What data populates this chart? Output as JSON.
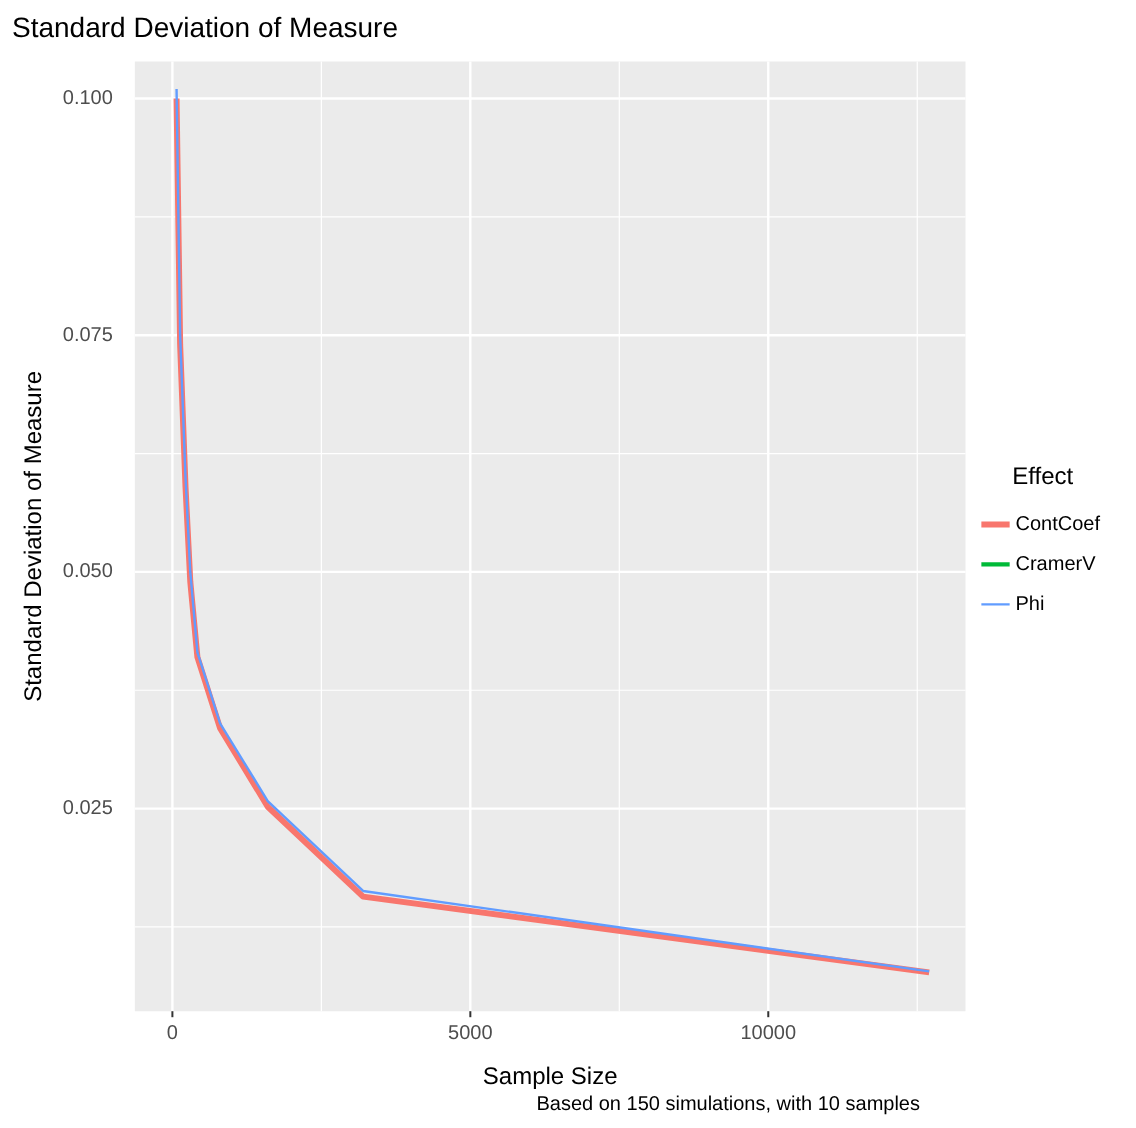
{
  "chart_data": {
    "type": "line",
    "title": "Standard Deviation of Measure",
    "xlabel": "Sample Size",
    "ylabel": "Standard Deviation of Measure",
    "legend_title": "Effect",
    "annotations": [
      "Based on 150 simulations, with 10 samples"
    ],
    "x": [
      70,
      130,
      220,
      300,
      420,
      800,
      1600,
      3200,
      12700
    ],
    "series": [
      {
        "name": "ContCoef",
        "color": "#f8766d",
        "values": [
          0.1,
          0.074,
          0.059,
          0.049,
          0.041,
          0.0335,
          0.0252,
          0.0157,
          0.0077
        ]
      },
      {
        "name": "CramerV",
        "color": "#00ba38",
        "values": [
          null,
          null,
          null,
          null,
          null,
          null,
          null,
          null,
          null
        ]
      },
      {
        "name": "Phi",
        "color": "#619cff",
        "values": [
          0.101,
          0.075,
          0.06,
          0.05,
          0.0415,
          0.034,
          0.0258,
          0.0163,
          0.0078
        ]
      }
    ],
    "xlim": [
      -630,
      13310
    ],
    "ylim": [
      0.0036,
      0.1039
    ],
    "xticks": [
      0,
      5000,
      10000
    ],
    "yticks": [
      {
        "value": 0.025,
        "label": "0.025"
      },
      {
        "value": 0.05,
        "label": "0.050"
      },
      {
        "value": 0.075,
        "label": "0.075"
      },
      {
        "value": 0.1,
        "label": "0.100"
      }
    ],
    "grid": true,
    "legend": "right",
    "marker": "none",
    "line_style": "solid"
  }
}
